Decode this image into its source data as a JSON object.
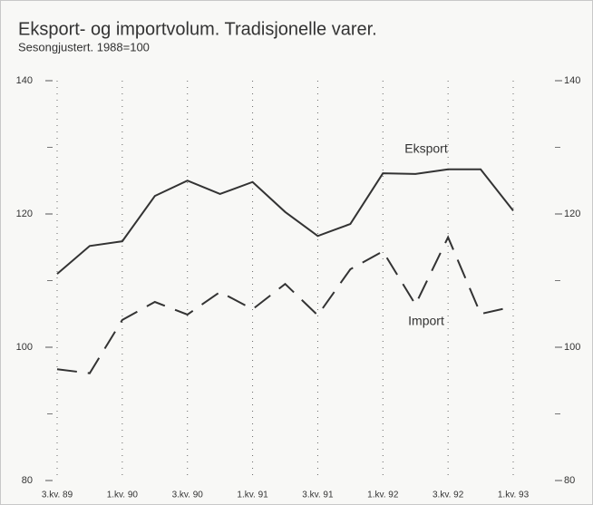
{
  "chart_data": {
    "type": "line",
    "title": "Eksport- og importvolum. Tradisjonelle varer.",
    "subtitle": "Sesongjustert. 1988=100",
    "categories": [
      "3.kv. 89",
      null,
      "1.kv. 90",
      null,
      "3.kv. 90",
      null,
      "1.kv. 91",
      null,
      "3.kv. 91",
      null,
      "1.kv. 92",
      null,
      "3.kv. 92",
      null,
      "1.kv. 93"
    ],
    "series": [
      {
        "name": "Eksport",
        "color": "#333333",
        "style": "solid",
        "values": [
          111.0,
          115.2,
          115.9,
          122.7,
          125.0,
          123.0,
          124.8,
          120.3,
          116.7,
          118.5,
          126.1,
          126.0,
          126.7,
          126.7,
          120.5
        ]
      },
      {
        "name": "Import",
        "color": "#333333",
        "style": "dashed",
        "values": [
          96.7,
          96.1,
          104.1,
          106.8,
          104.9,
          108.3,
          105.7,
          109.5,
          104.8,
          111.7,
          114.4,
          106.4,
          116.5,
          105.0,
          106.1
        ]
      }
    ],
    "ylim": [
      80,
      140
    ],
    "yticks": [
      80,
      100,
      120,
      140
    ],
    "minor_yticks": [
      90,
      110,
      130
    ],
    "grid": true
  }
}
